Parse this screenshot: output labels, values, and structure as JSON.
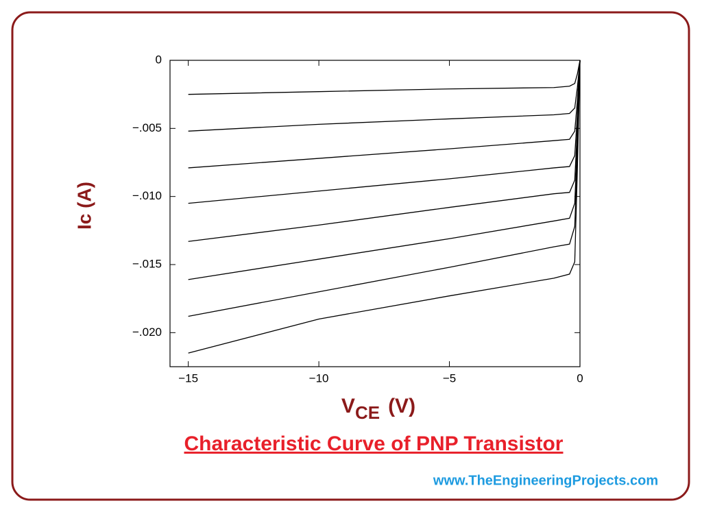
{
  "chart_data": {
    "type": "line",
    "y_label": "Ic (A)",
    "x_label": {
      "main": "V",
      "sub": "CE",
      "unit": "(V)"
    },
    "caption": "Characteristic Curve of PNP Transistor",
    "watermark": "www.TheEngineeringProjects.com",
    "x": [
      -15,
      -10,
      -5,
      -1,
      -0.4,
      -0.2,
      -0.1,
      0
    ],
    "series": [
      {
        "color": "#000000",
        "values": [
          -0.0025,
          -0.0023,
          -0.0021,
          -0.002,
          -0.0019,
          -0.0017,
          -0.001,
          0
        ]
      },
      {
        "color": "#000000",
        "values": [
          -0.0052,
          -0.0047,
          -0.0043,
          -0.004,
          -0.0039,
          -0.0035,
          -0.002,
          0
        ]
      },
      {
        "color": "#000000",
        "values": [
          -0.0079,
          -0.0072,
          -0.0065,
          -0.0059,
          -0.0058,
          -0.0052,
          -0.003,
          0
        ]
      },
      {
        "color": "#000000",
        "values": [
          -0.0105,
          -0.0096,
          -0.0087,
          -0.0079,
          -0.0078,
          -0.007,
          -0.004,
          0
        ]
      },
      {
        "color": "#000000",
        "values": [
          -0.0133,
          -0.0121,
          -0.0108,
          -0.0098,
          -0.0097,
          -0.0088,
          -0.005,
          0
        ]
      },
      {
        "color": "#000000",
        "values": [
          -0.0161,
          -0.0146,
          -0.0131,
          -0.0118,
          -0.0116,
          -0.0105,
          -0.006,
          0
        ]
      },
      {
        "color": "#000000",
        "values": [
          -0.0188,
          -0.017,
          -0.0152,
          -0.0137,
          -0.0135,
          -0.0122,
          -0.007,
          0
        ]
      },
      {
        "color": "#000000",
        "values": [
          -0.0215,
          -0.019,
          -0.0173,
          -0.016,
          -0.0157,
          -0.0148,
          -0.008,
          0
        ]
      }
    ],
    "xlim": [
      -15.7,
      0
    ],
    "ylim": [
      -0.0225,
      0
    ],
    "xticks": [
      {
        "value": -15,
        "label": "−15"
      },
      {
        "value": -10,
        "label": "−10"
      },
      {
        "value": -5,
        "label": "−5"
      },
      0
    ],
    "yticks": [
      0,
      {
        "value": -0.005,
        "label": "−.005"
      },
      {
        "value": -0.01,
        "label": "−.010"
      },
      {
        "value": -0.015,
        "label": "−.015"
      },
      {
        "value": -0.02,
        "label": "−.020"
      }
    ],
    "grid": false
  }
}
